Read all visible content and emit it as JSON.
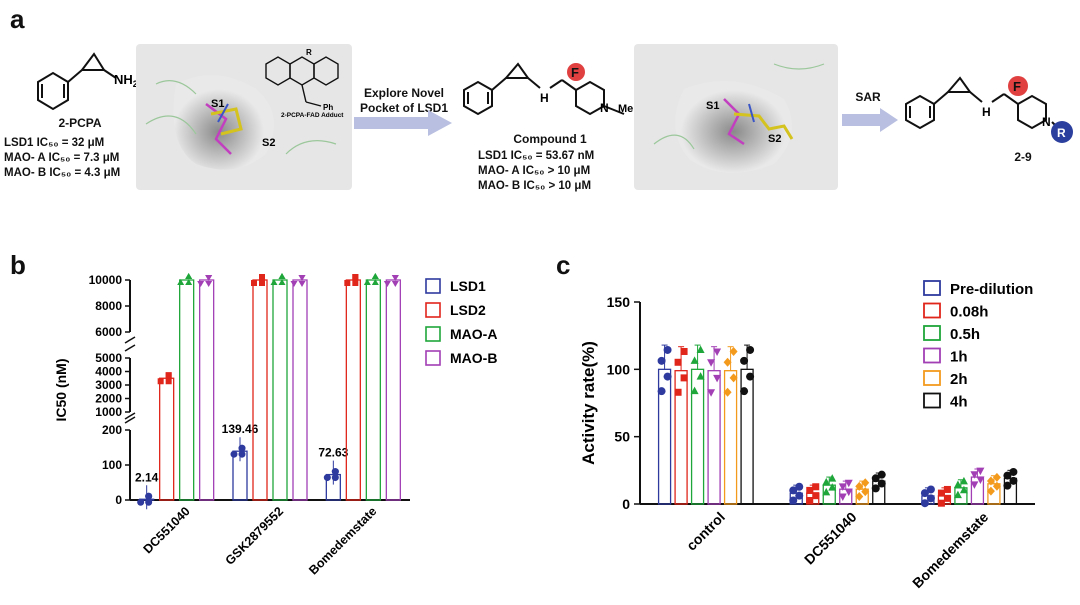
{
  "panel_a": {
    "label": "a",
    "pcpa": {
      "name": "2-PCPA",
      "nh2": "NH",
      "nh2_sub": "2",
      "lines": [
        "LSD1 IC₅₀ = 32 μM",
        "MAO- A IC₅₀ = 7.3 μM",
        "MAO- B IC₅₀ = 4.3 μM"
      ]
    },
    "dock1": {
      "s1": "S1",
      "s2": "S2",
      "adduct": "2-PCPA-FAD Adduct",
      "ph": "Ph",
      "r": "R"
    },
    "arrow1_label": [
      "Explore Novel",
      "Pocket of LSD1"
    ],
    "compound1": {
      "name": "Compound 1",
      "lines": [
        "LSD1 IC₅₀ = 53.67 nM",
        "MAO- A IC₅₀ > 10 μM",
        "MAO- B IC₅₀ > 10 μM"
      ],
      "f": "F",
      "nh": "H",
      "n": "N",
      "me": "Me"
    },
    "dock2": {
      "s1": "S1",
      "s2": "S2"
    },
    "arrow2_label": "SAR",
    "series_compound": {
      "name": "2-9",
      "f": "F",
      "r": "R",
      "nh": "H",
      "n": "N"
    }
  },
  "colors": {
    "LSD1": "#2e3a9e",
    "LSD2": "#e0251b",
    "MAO-A": "#1fa63a",
    "MAO-B": "#a23fb5",
    "2h": "#f39a1d",
    "4h": "#111111",
    "arrow": "#b9bfe0"
  },
  "chart_data": [
    {
      "panel": "b",
      "type": "bar",
      "categories": [
        "DC551040",
        "GSK2879552",
        "Bomedemstate"
      ],
      "ylabel": "IC50 (nM)",
      "y_segments": [
        [
          0,
          200
        ],
        [
          1000,
          5000
        ],
        [
          6000,
          10000
        ]
      ],
      "y_ticks": [
        0,
        100,
        200,
        1000,
        2000,
        3000,
        4000,
        5000,
        6000,
        8000,
        10000
      ],
      "legend": "right",
      "series": [
        {
          "name": "LSD1",
          "values": [
            2.14,
            139.46,
            72.63
          ]
        },
        {
          "name": "LSD2",
          "values": [
            3500,
            10000,
            10000
          ]
        },
        {
          "name": "MAO-A",
          "values": [
            10000,
            10000,
            10000
          ]
        },
        {
          "name": "MAO-B",
          "values": [
            10000,
            10000,
            10000
          ]
        }
      ],
      "data_labels": [
        "2.14",
        "139.46",
        "72.63"
      ]
    },
    {
      "panel": "c",
      "type": "bar",
      "categories": [
        "control",
        "DC551040",
        "Bomedemstate"
      ],
      "ylabel": "Activity rate(%)",
      "ylim": [
        0,
        150
      ],
      "y_ticks": [
        0,
        50,
        100,
        150
      ],
      "legend": "right",
      "series": [
        {
          "name": "Pre-dilution",
          "values": [
            100,
            8,
            6
          ]
        },
        {
          "name": "0.08h",
          "values": [
            99,
            8,
            6
          ]
        },
        {
          "name": "0.5h",
          "values": [
            100,
            14,
            12
          ]
        },
        {
          "name": "1h",
          "values": [
            99,
            11,
            20
          ]
        },
        {
          "name": "2h",
          "values": [
            99,
            11,
            15
          ]
        },
        {
          "name": "4h",
          "values": [
            100,
            17,
            19
          ]
        }
      ]
    }
  ]
}
